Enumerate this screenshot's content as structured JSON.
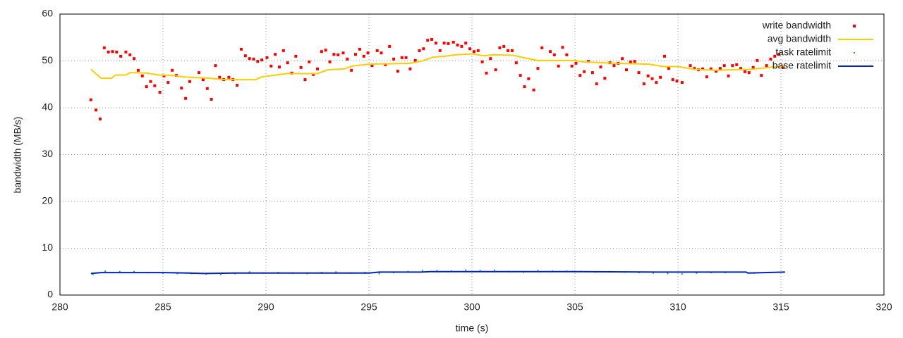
{
  "chart_data": {
    "type": "scatter",
    "xlabel": "time (s)",
    "ylabel": "bandwidth (MB/s)",
    "xlim": [
      280,
      320
    ],
    "xticks": [
      280,
      285,
      290,
      295,
      300,
      305,
      310,
      315,
      320
    ],
    "ylim": [
      0,
      60
    ],
    "yticks": [
      0,
      10,
      20,
      30,
      40,
      50,
      60
    ],
    "grid": true,
    "legend": "top-right",
    "series": [
      {
        "name": "write bandwidth",
        "color": "#ff0000",
        "style": "points",
        "x": [
          281.5,
          281.75,
          281.95,
          282.15,
          282.35,
          282.55,
          282.75,
          282.95,
          283.2,
          283.4,
          283.6,
          283.8,
          284.0,
          284.2,
          284.4,
          284.6,
          284.85,
          285.05,
          285.25,
          285.45,
          285.65,
          285.9,
          286.1,
          286.3,
          286.75,
          286.95,
          287.15,
          287.35,
          287.55,
          287.75,
          287.95,
          288.2,
          288.4,
          288.6,
          288.8,
          289.0,
          289.2,
          289.4,
          289.6,
          289.8,
          290.05,
          290.25,
          290.45,
          290.65,
          290.85,
          291.05,
          291.25,
          291.45,
          291.7,
          291.9,
          292.1,
          292.3,
          292.5,
          292.7,
          292.9,
          293.1,
          293.3,
          293.5,
          293.75,
          293.95,
          294.15,
          294.35,
          294.55,
          294.75,
          294.95,
          295.15,
          295.4,
          295.6,
          295.8,
          296.0,
          296.2,
          296.4,
          296.6,
          296.8,
          297.0,
          297.25,
          297.45,
          297.65,
          297.85,
          298.05,
          298.25,
          298.45,
          298.65,
          298.85,
          299.1,
          299.3,
          299.5,
          299.7,
          299.9,
          300.1,
          300.3,
          300.5,
          300.7,
          300.9,
          301.15,
          301.35,
          301.55,
          301.75,
          301.95,
          302.15,
          302.35,
          302.55,
          302.75,
          303.0,
          303.2,
          303.4,
          303.8,
          304.0,
          304.2,
          304.4,
          304.6,
          304.85,
          305.05,
          305.25,
          305.45,
          305.65,
          305.85,
          306.05,
          306.25,
          306.45,
          306.7,
          306.9,
          307.1,
          307.3,
          307.5,
          307.7,
          307.9,
          308.1,
          308.35,
          308.55,
          308.75,
          308.95,
          309.15,
          309.35,
          309.55,
          309.75,
          309.95,
          310.2,
          310.6,
          310.8,
          311.0,
          311.2,
          311.4,
          311.6,
          311.85,
          312.05,
          312.25,
          312.45,
          312.65,
          312.85,
          313.05,
          313.25,
          313.45,
          313.65,
          313.85,
          314.05,
          314.3,
          314.5,
          314.7,
          314.9,
          315.1
        ],
        "values": [
          41.7,
          39.5,
          37.6,
          52.8,
          51.9,
          52.0,
          51.9,
          51.0,
          51.9,
          51.3,
          50.5,
          48.0,
          46.8,
          44.5,
          45.6,
          44.7,
          43.3,
          46.8,
          45.4,
          48.0,
          46.9,
          44.2,
          42.0,
          45.6,
          47.5,
          46.0,
          44.1,
          41.8,
          49.0,
          46.5,
          46.0,
          46.5,
          46.0,
          44.8,
          52.5,
          51.1,
          50.5,
          50.4,
          49.9,
          50.2,
          50.7,
          48.9,
          51.4,
          48.7,
          52.2,
          49.6,
          47.4,
          51.0,
          48.6,
          46.0,
          49.8,
          47.1,
          48.3,
          52.0,
          52.3,
          49.8,
          51.4,
          51.3,
          51.7,
          50.4,
          48.0,
          51.4,
          52.5,
          51.0,
          51.7,
          49.0,
          52.2,
          51.7,
          49.2,
          53.1,
          50.4,
          47.8,
          50.7,
          50.7,
          48.3,
          50.1,
          52.2,
          52.6,
          54.4,
          54.6,
          53.8,
          52.2,
          53.8,
          53.7,
          54.0,
          53.4,
          53.1,
          53.8,
          52.6,
          52.0,
          52.2,
          49.8,
          47.4,
          50.5,
          48.1,
          52.8,
          53.1,
          52.2,
          52.2,
          49.6,
          46.9,
          44.5,
          46.2,
          43.8,
          48.4,
          52.8,
          52.0,
          51.3,
          48.9,
          52.9,
          51.3,
          48.9,
          49.5,
          46.9,
          47.7,
          49.9,
          47.5,
          45.1,
          48.7,
          46.3,
          49.6,
          49.0,
          49.5,
          50.5,
          48.1,
          49.8,
          49.9,
          47.5,
          45.1,
          46.8,
          46.2,
          45.4,
          46.5,
          51.0,
          48.4,
          46.0,
          45.7,
          45.4,
          49.0,
          48.4,
          48.1,
          48.3,
          46.6,
          48.3,
          47.8,
          48.4,
          49.0,
          46.8,
          49.0,
          49.2,
          48.4,
          47.7,
          47.5,
          48.6,
          50.1,
          46.9,
          49.0,
          50.4,
          51.0,
          51.4,
          48.6
        ]
      },
      {
        "name": "avg bandwidth",
        "color": "#ffcc00",
        "style": "lines",
        "x": [
          281.5,
          282.0,
          282.5,
          282.7,
          283.2,
          283.4,
          284.2,
          284.8,
          285.5,
          286.0,
          286.3,
          287.3,
          287.9,
          289.5,
          289.8,
          290.5,
          291.0,
          292.5,
          293.0,
          293.8,
          294.2,
          295.0,
          297.0,
          297.6,
          298.1,
          298.7,
          299.2,
          300.0,
          300.6,
          301.0,
          302.0,
          302.6,
          303.2,
          305.0,
          305.4,
          307.0,
          308.6,
          309.3,
          310.0,
          310.8,
          311.8,
          313.5,
          314.2,
          315.2
        ],
        "values": [
          48.2,
          46.3,
          46.3,
          47.0,
          47.0,
          47.5,
          47.4,
          47.0,
          46.9,
          46.6,
          46.5,
          46.3,
          46.0,
          46.0,
          46.6,
          47.0,
          47.3,
          47.3,
          48.1,
          48.3,
          48.9,
          49.3,
          49.5,
          50.0,
          50.8,
          51.0,
          51.3,
          51.5,
          51.1,
          51.3,
          51.2,
          50.6,
          50.1,
          50.1,
          49.8,
          49.5,
          49.3,
          48.8,
          48.8,
          48.2,
          48.0,
          48.2,
          48.5,
          49.0
        ]
      },
      {
        "name": "task ratelimit",
        "color": "#00cc00",
        "style": "dots",
        "x": [
          281.6,
          282.2,
          282.9,
          283.6,
          284.3,
          285.0,
          285.7,
          286.4,
          287.1,
          287.8,
          288.5,
          289.2,
          289.9,
          290.6,
          291.3,
          292.0,
          292.7,
          293.4,
          294.1,
          294.8,
          295.5,
          296.2,
          296.9,
          297.6,
          298.3,
          299.0,
          299.7,
          300.4,
          301.1,
          301.8,
          302.5,
          303.2,
          303.9,
          304.6,
          305.3,
          306.0,
          306.7,
          307.4,
          308.1,
          308.8,
          309.5,
          310.2,
          310.9,
          311.6,
          312.3,
          313.0,
          313.7,
          314.4,
          315.1
        ],
        "values": [
          4.4,
          5.1,
          5.0,
          5.0,
          4.8,
          4.7,
          4.6,
          4.6,
          4.5,
          4.4,
          4.6,
          4.9,
          4.7,
          4.8,
          4.7,
          4.6,
          4.8,
          4.9,
          4.7,
          4.8,
          4.6,
          4.8,
          5.0,
          5.2,
          5.2,
          5.1,
          5.3,
          5.2,
          5.3,
          5.0,
          4.9,
          5.2,
          5.1,
          5.1,
          5.0,
          4.9,
          5.0,
          4.9,
          4.8,
          4.7,
          4.6,
          4.5,
          4.7,
          4.8,
          4.8,
          4.9,
          4.7,
          4.8,
          4.9
        ]
      },
      {
        "name": "base ratelimit",
        "color": "#0022cc",
        "style": "lines",
        "x": [
          281.5,
          282.0,
          285.0,
          286.2,
          287.0,
          288.5,
          295.0,
          295.5,
          297.5,
          298.0,
          305.0,
          309.0,
          313.3,
          313.4,
          315.2
        ],
        "values": [
          4.6,
          4.8,
          4.8,
          4.7,
          4.6,
          4.7,
          4.7,
          4.9,
          4.9,
          5.0,
          5.0,
          4.9,
          4.9,
          4.7,
          4.9
        ]
      }
    ]
  }
}
